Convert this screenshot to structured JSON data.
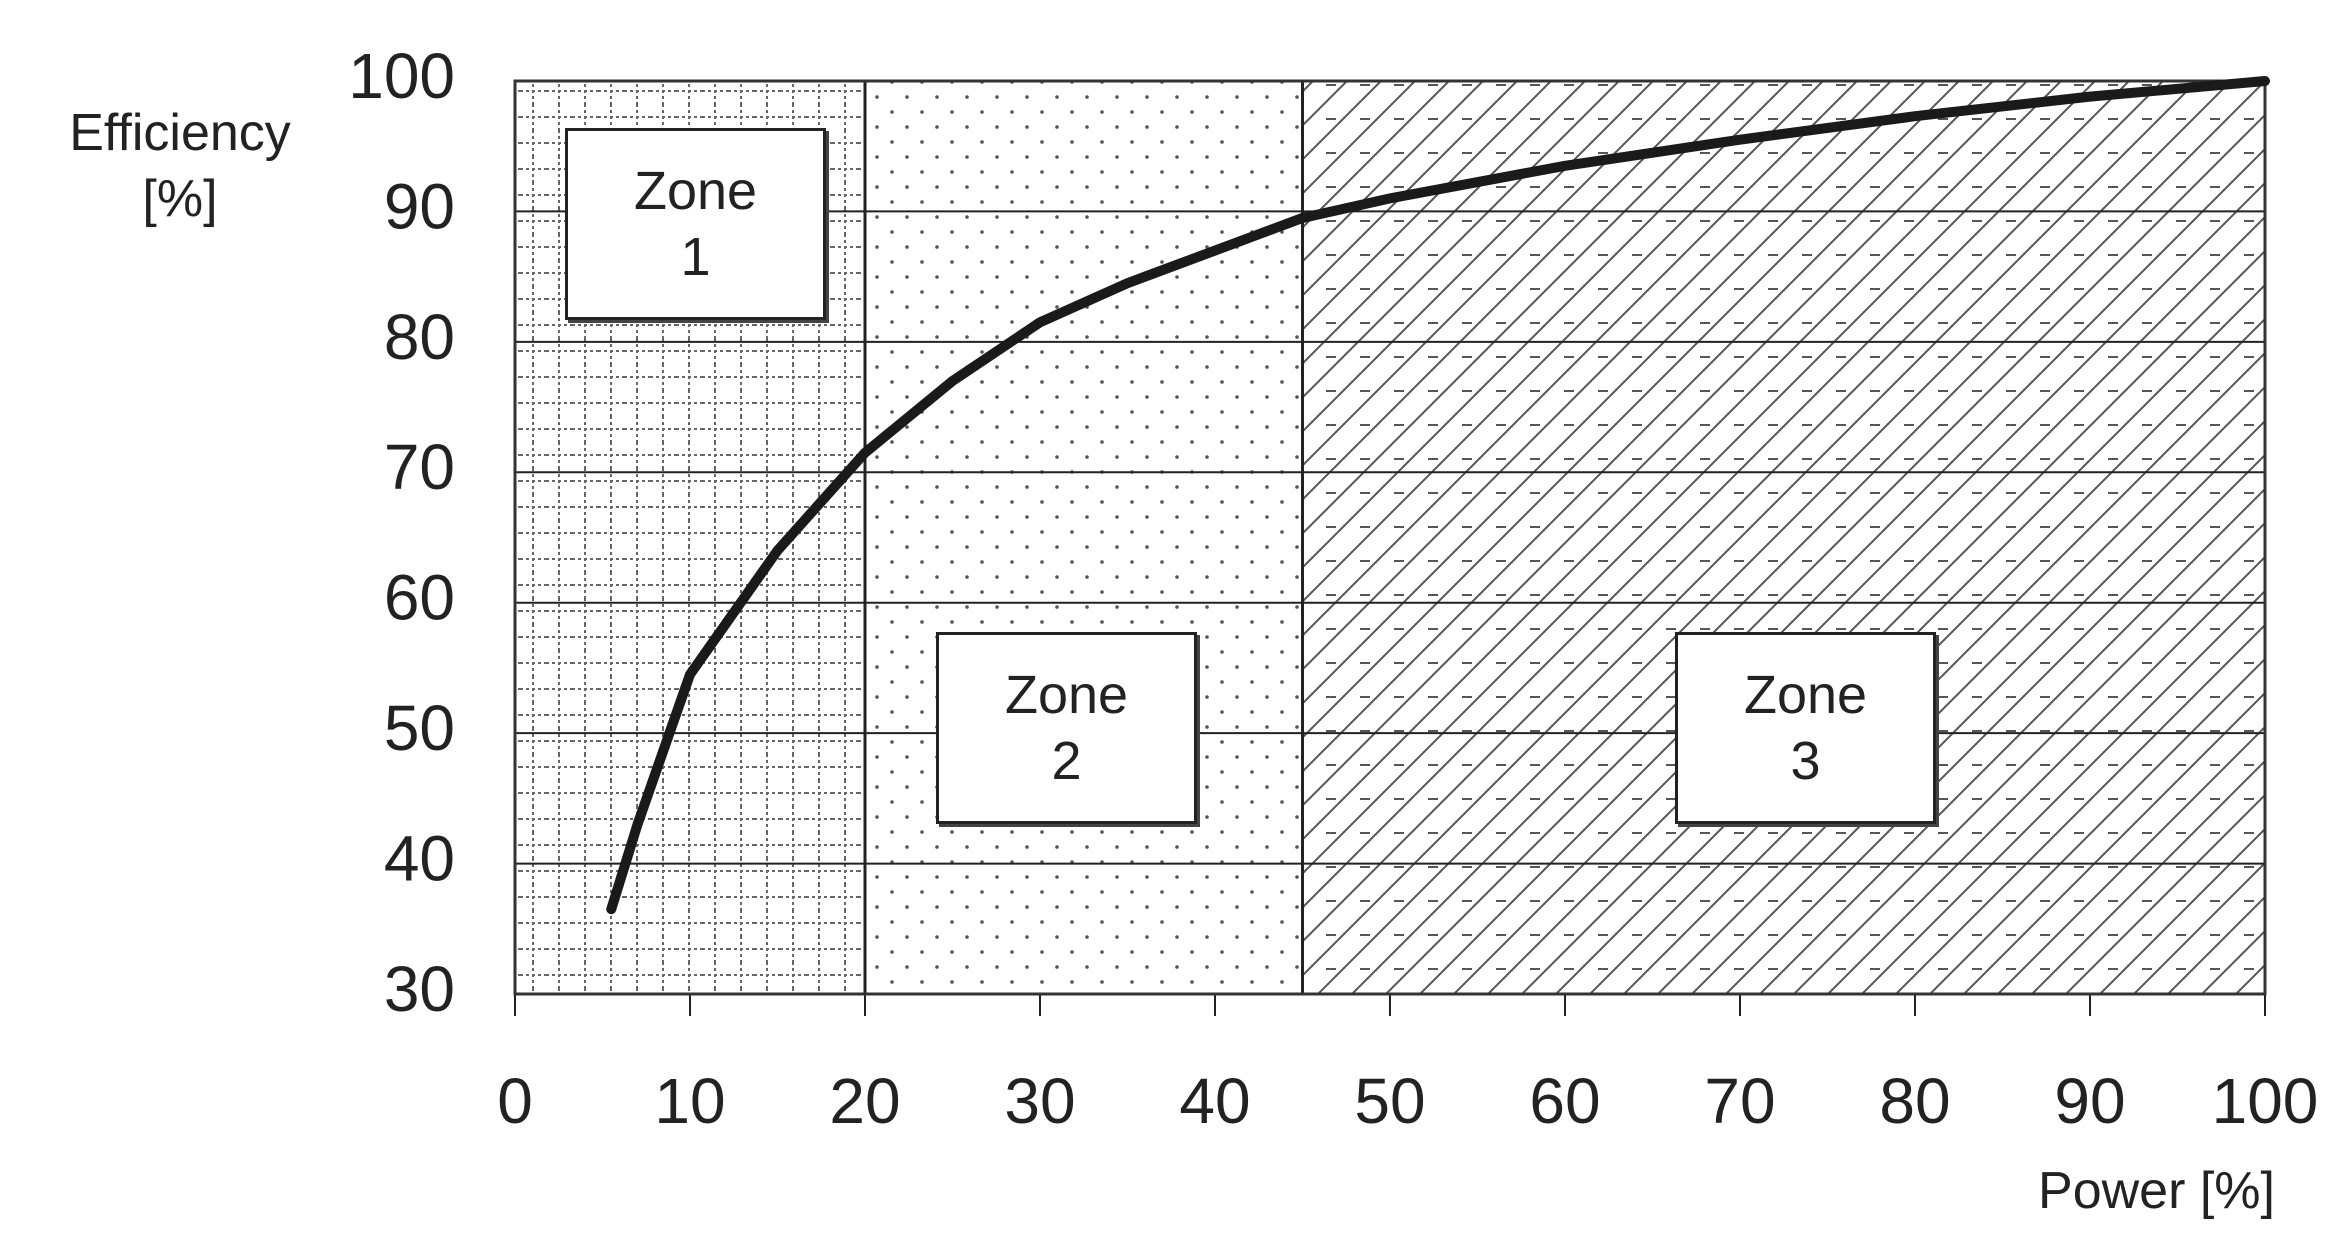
{
  "chart_data": {
    "type": "line",
    "xlabel": "Power [%]",
    "ylabel": "Efficiency [%]",
    "x": [
      5.5,
      7,
      10,
      15,
      20,
      25,
      30,
      35,
      40,
      45,
      50,
      60,
      70,
      80,
      90,
      100
    ],
    "values": [
      36.5,
      43,
      54.5,
      64,
      71.5,
      77,
      81.5,
      84.5,
      87,
      89.5,
      91,
      93.5,
      95.5,
      97.3,
      98.8,
      100
    ],
    "color": "#1a1a1a",
    "xlim": [
      0,
      100
    ],
    "xticks": [
      0,
      10,
      20,
      30,
      40,
      50,
      60,
      70,
      80,
      90,
      100
    ],
    "ylim": [
      30,
      100
    ],
    "yticks": [
      30,
      40,
      50,
      60,
      70,
      80,
      90,
      100
    ],
    "grid": true,
    "zones": [
      {
        "label": "Zone 1",
        "start": 0,
        "end": 20
      },
      {
        "label": "Zone 2",
        "start": 20,
        "end": 45
      },
      {
        "label": "Zone 3",
        "start": 45,
        "end": 100
      }
    ]
  }
}
